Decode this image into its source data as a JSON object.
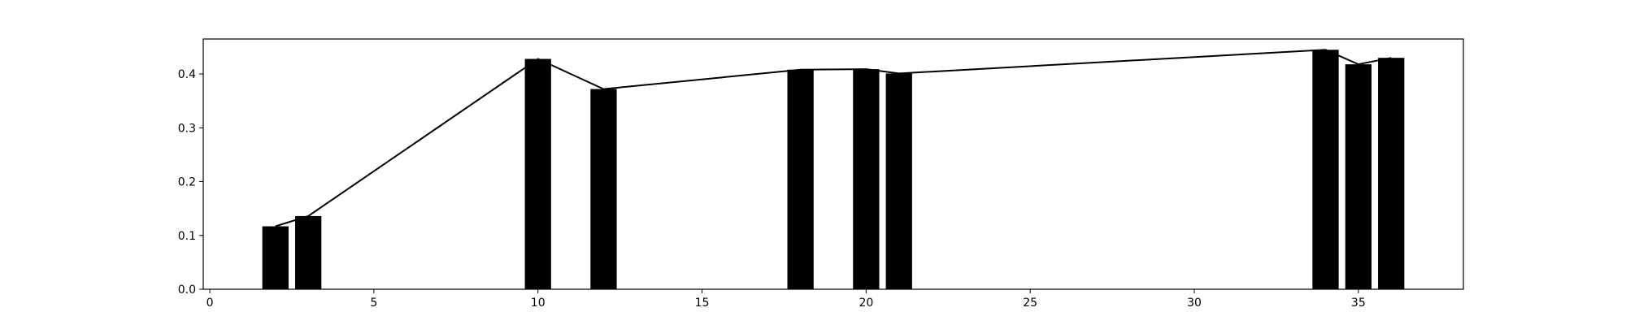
{
  "chart_data": {
    "type": "bar",
    "title": "",
    "xlabel": "",
    "ylabel": "",
    "xlim": [
      -0.2,
      38.2
    ],
    "ylim": [
      0.0,
      0.465
    ],
    "x_ticks": [
      0,
      5,
      10,
      15,
      20,
      25,
      30,
      35
    ],
    "y_ticks": [
      0.0,
      0.1,
      0.2,
      0.3,
      0.4
    ],
    "x_tick_labels": [
      "0",
      "5",
      "10",
      "15",
      "20",
      "25",
      "30",
      "35"
    ],
    "y_tick_labels": [
      "0.0",
      "0.1",
      "0.2",
      "0.3",
      "0.4"
    ],
    "bar_width": 0.8,
    "grid": false,
    "colors": {
      "bars": "#000000",
      "line": "#000000"
    },
    "series": [
      {
        "type": "bar",
        "x": [
          2,
          3,
          10,
          12,
          18,
          20,
          21,
          34,
          35,
          36
        ],
        "values": [
          0.117,
          0.136,
          0.428,
          0.372,
          0.408,
          0.409,
          0.401,
          0.445,
          0.418,
          0.43
        ]
      },
      {
        "type": "line",
        "x": [
          2,
          3,
          10,
          12,
          18,
          20,
          21,
          34,
          35,
          36
        ],
        "values": [
          0.117,
          0.136,
          0.428,
          0.372,
          0.408,
          0.409,
          0.401,
          0.445,
          0.418,
          0.43
        ]
      }
    ]
  }
}
